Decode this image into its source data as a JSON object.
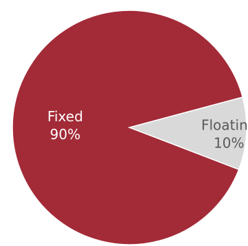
{
  "chart_data": {
    "type": "pie",
    "title": "",
    "slices": [
      {
        "label": "Fixed",
        "value": 90,
        "value_label": "90%",
        "color": "#A32A37",
        "label_color": "#ffffff"
      },
      {
        "label": "Floating",
        "value": 10,
        "value_label": "10%",
        "color": "#D9D9D9",
        "label_color": "#595959"
      }
    ],
    "start_angle_deg": 15,
    "direction": "counterclockwise"
  }
}
